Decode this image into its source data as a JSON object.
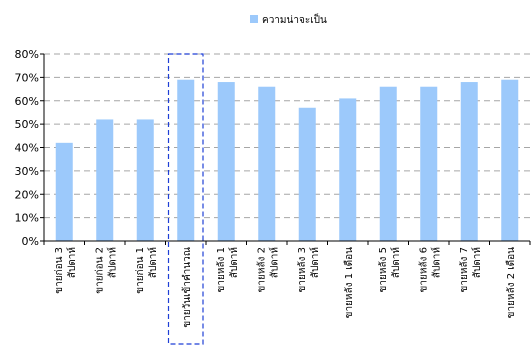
{
  "chart_data": {
    "type": "bar",
    "legend": {
      "label": "ความน่าจะเป็น",
      "position": "top"
    },
    "color": "#9cc9fb",
    "ylim": [
      0,
      80
    ],
    "yticks": [
      "0%",
      "10%",
      "20%",
      "30%",
      "40%",
      "50%",
      "60%",
      "70%",
      "80%"
    ],
    "grid": true,
    "categories": [
      [
        "ขายก่อน 3",
        "สัปดาห์"
      ],
      [
        "ขายก่อน 2",
        "สัปดาห์"
      ],
      [
        "ขายก่อน 1",
        "สัปดาห์"
      ],
      [
        "ขายวันเข้าคำนวณ"
      ],
      [
        "ขายหลัง 1",
        "สัปดาห์"
      ],
      [
        "ขายหลัง 2",
        "สัปดาห์"
      ],
      [
        "ขายหลัง 3",
        "สัปดาห์"
      ],
      [
        "ขายหลัง 1 เดือน"
      ],
      [
        "ขายหลัง 5",
        "สัปดาห์"
      ],
      [
        "ขายหลัง 6",
        "สัปดาห์"
      ],
      [
        "ขายหลัง 7",
        "สัปดาห์"
      ],
      [
        "ขายหลัง 2 เดือน"
      ]
    ],
    "values": [
      42,
      52,
      52,
      69,
      68,
      66,
      57,
      61,
      66,
      66,
      68,
      69
    ],
    "highlight_index": 3,
    "highlight_color": "#1f3fd6"
  }
}
